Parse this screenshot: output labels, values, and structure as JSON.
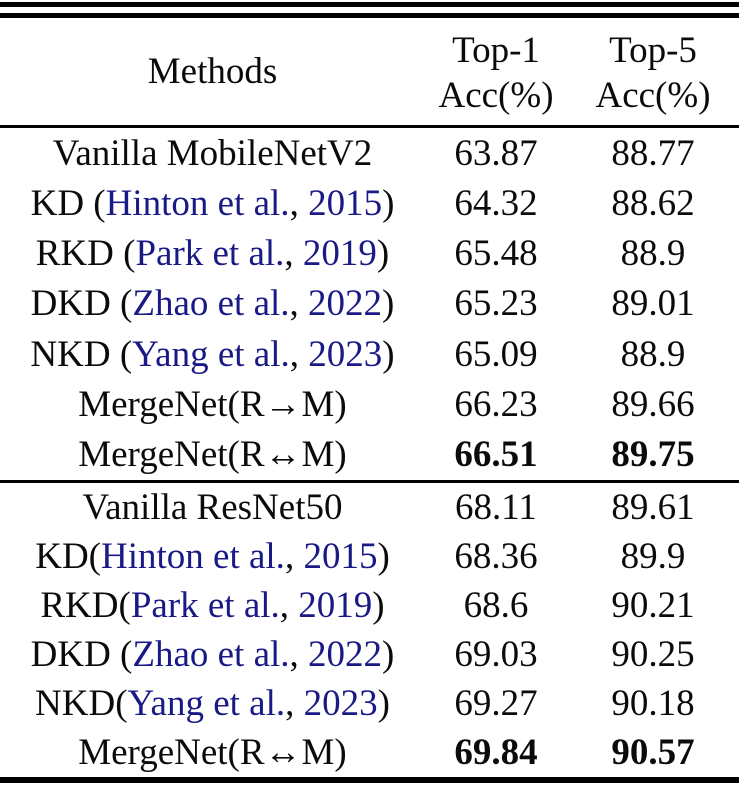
{
  "colors": {
    "background": "#ffffff",
    "text": "#0b0b0b",
    "citation": "#1a1a87",
    "rule": "#000000"
  },
  "table": {
    "headers": {
      "methods": "Methods",
      "top1_line1": "Top-1",
      "top1_line2": "Acc(%)",
      "top5_line1": "Top-5",
      "top5_line2": "Acc(%)"
    },
    "sections": [
      {
        "rows": [
          {
            "method": [
              {
                "t": "Vanilla MobileNetV2",
                "link": false
              }
            ],
            "top1": "63.87",
            "top5": "88.77",
            "bold": false
          },
          {
            "method": [
              {
                "t": "KD (",
                "link": false
              },
              {
                "t": "Hinton et al.",
                "link": true
              },
              {
                "t": ", ",
                "link": false
              },
              {
                "t": "2015",
                "link": true
              },
              {
                "t": ")",
                "link": false
              }
            ],
            "top1": "64.32",
            "top5": "88.62",
            "bold": false
          },
          {
            "method": [
              {
                "t": "RKD (",
                "link": false
              },
              {
                "t": "Park et al.",
                "link": true
              },
              {
                "t": ", ",
                "link": false
              },
              {
                "t": "2019",
                "link": true
              },
              {
                "t": ")",
                "link": false
              }
            ],
            "top1": "65.48",
            "top5": "88.9",
            "bold": false
          },
          {
            "method": [
              {
                "t": "DKD (",
                "link": false
              },
              {
                "t": "Zhao et al.",
                "link": true
              },
              {
                "t": ", ",
                "link": false
              },
              {
                "t": "2022",
                "link": true
              },
              {
                "t": ")",
                "link": false
              }
            ],
            "top1": "65.23",
            "top5": "89.01",
            "bold": false
          },
          {
            "method": [
              {
                "t": "NKD (",
                "link": false
              },
              {
                "t": "Yang et al.",
                "link": true
              },
              {
                "t": ", ",
                "link": false
              },
              {
                "t": "2023",
                "link": true
              },
              {
                "t": ")",
                "link": false
              }
            ],
            "top1": "65.09",
            "top5": "88.9",
            "bold": false
          },
          {
            "method": [
              {
                "t": "MergeNet(R→M)",
                "link": false
              }
            ],
            "top1": "66.23",
            "top5": "89.66",
            "bold": false
          },
          {
            "method": [
              {
                "t": "MergeNet(R↔M)",
                "link": false
              }
            ],
            "top1": "66.51",
            "top5": "89.75",
            "bold": true
          }
        ]
      },
      {
        "rows": [
          {
            "method": [
              {
                "t": "Vanilla ResNet50",
                "link": false
              }
            ],
            "top1": "68.11",
            "top5": "89.61",
            "bold": false
          },
          {
            "method": [
              {
                "t": "KD(",
                "link": false
              },
              {
                "t": "Hinton et al.",
                "link": true
              },
              {
                "t": ", ",
                "link": false
              },
              {
                "t": "2015",
                "link": true
              },
              {
                "t": ")",
                "link": false
              }
            ],
            "top1": "68.36",
            "top5": "89.9",
            "bold": false
          },
          {
            "method": [
              {
                "t": "RKD(",
                "link": false
              },
              {
                "t": "Park et al.",
                "link": true
              },
              {
                "t": ", ",
                "link": false
              },
              {
                "t": "2019",
                "link": true
              },
              {
                "t": ")",
                "link": false
              }
            ],
            "top1": "68.6",
            "top5": "90.21",
            "bold": false
          },
          {
            "method": [
              {
                "t": "DKD (",
                "link": false
              },
              {
                "t": "Zhao et al.",
                "link": true
              },
              {
                "t": ", ",
                "link": false
              },
              {
                "t": "2022",
                "link": true
              },
              {
                "t": ")",
                "link": false
              }
            ],
            "top1": "69.03",
            "top5": "90.25",
            "bold": false
          },
          {
            "method": [
              {
                "t": "NKD(",
                "link": false
              },
              {
                "t": "Yang et al.",
                "link": true
              },
              {
                "t": ", ",
                "link": false
              },
              {
                "t": "2023",
                "link": true
              },
              {
                "t": ")",
                "link": false
              }
            ],
            "top1": "69.27",
            "top5": "90.18",
            "bold": false
          },
          {
            "method": [
              {
                "t": "MergeNet(R↔M)",
                "link": false
              }
            ],
            "top1": "69.84",
            "top5": "90.57",
            "bold": true
          }
        ]
      }
    ]
  }
}
